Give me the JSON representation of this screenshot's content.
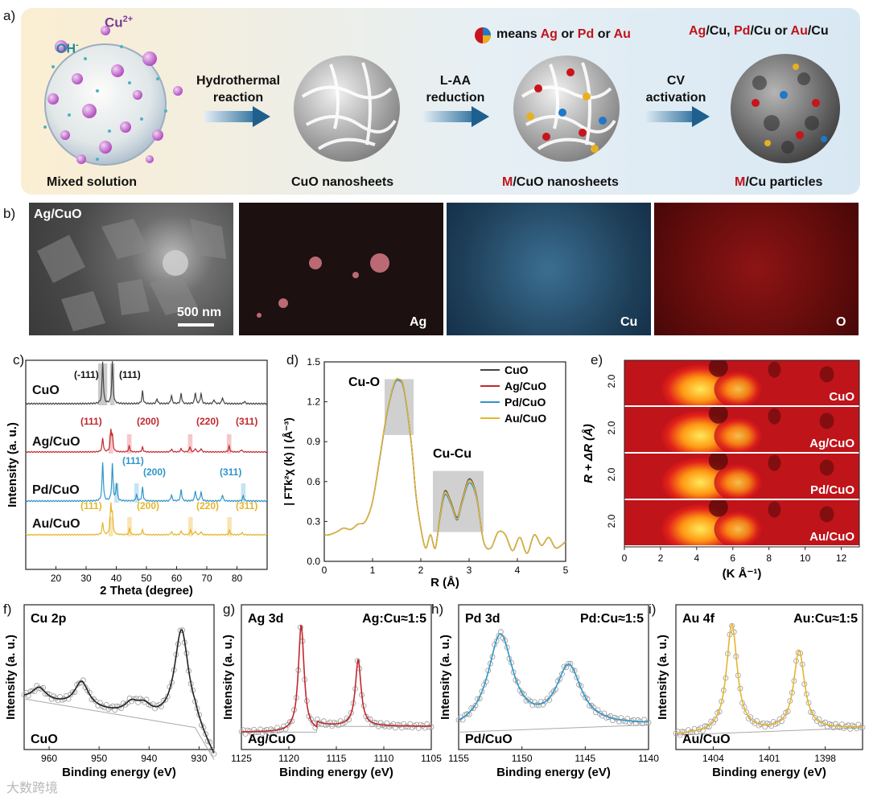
{
  "panels": {
    "a": "a)",
    "b": "b)",
    "c": "c)",
    "d": "d)",
    "e": "e)",
    "f": "f)",
    "g": "g)",
    "h": "h)",
    "i": "i)"
  },
  "scheme": {
    "cu_ion": "Cu",
    "cu_charge": "2+",
    "oh_ion": "OH",
    "oh_charge": "-",
    "step1_label_1": "Hydrothermal",
    "step1_label_2": "reaction",
    "step2_label_1": "L-AA",
    "step2_label_2": "reduction",
    "step3_label_1": "CV",
    "step3_label_2": "activation",
    "legend_prefix": "means",
    "legend_ag": "Ag",
    "legend_or1": "or",
    "legend_pd": "Pd",
    "legend_or2": "or",
    "legend_au": "Au",
    "product_ag": "Ag",
    "product_cu1": "/Cu,",
    "product_pd": "Pd",
    "product_cu2": "/Cu or",
    "product_au": "Au",
    "product_cu3": "/Cu",
    "caption_1": "Mixed solution",
    "caption_2": "CuO nanosheets",
    "caption_3_m": "M",
    "caption_3_rest": "/CuO nanosheets",
    "caption_4_m": "M",
    "caption_4_rest": "/Cu particles"
  },
  "microscopy": {
    "sample": "Ag/CuO",
    "scalebar": "500 nm",
    "map_ag": "Ag",
    "map_cu": "Cu",
    "map_o": "O"
  },
  "colors": {
    "cuo": "#444444",
    "ag": "#c0282d",
    "pd": "#2f95c8",
    "au": "#e6b52b",
    "gray_band": "#c8c8c8"
  },
  "chart_data": [
    {
      "id": "c",
      "type": "line",
      "title": "",
      "xlabel": "2 Theta (degree)",
      "ylabel": "Intensity (a. u.)",
      "xlim": [
        10,
        90
      ],
      "xticks": [
        "20",
        "30",
        "40",
        "50",
        "60",
        "70",
        "80"
      ],
      "series": [
        {
          "name": "CuO",
          "peaks": [
            [
              35.5,
              1.0
            ],
            [
              38.7,
              1.0
            ],
            [
              48.7,
              0.3
            ],
            [
              53.5,
              0.12
            ],
            [
              58.3,
              0.2
            ],
            [
              61.5,
              0.25
            ],
            [
              66.2,
              0.27
            ],
            [
              68.1,
              0.25
            ],
            [
              72.4,
              0.1
            ],
            [
              75.2,
              0.15
            ],
            [
              82.5,
              0.06
            ]
          ]
        },
        {
          "name": "Ag/CuO",
          "peaks": [
            [
              35.5,
              0.48
            ],
            [
              38.2,
              0.7
            ],
            [
              38.7,
              0.5
            ],
            [
              44.3,
              0.2
            ],
            [
              48.7,
              0.16
            ],
            [
              58.3,
              0.1
            ],
            [
              61.5,
              0.12
            ],
            [
              64.4,
              0.18
            ],
            [
              66.2,
              0.12
            ],
            [
              68.1,
              0.12
            ],
            [
              77.4,
              0.2
            ],
            [
              81.5,
              0.08
            ]
          ]
        },
        {
          "name": "Pd/CuO",
          "peaks": [
            [
              35.5,
              1.0
            ],
            [
              38.7,
              0.95
            ],
            [
              40.1,
              0.45
            ],
            [
              46.7,
              0.16
            ],
            [
              48.7,
              0.35
            ],
            [
              58.3,
              0.16
            ],
            [
              61.5,
              0.3
            ],
            [
              66.2,
              0.27
            ],
            [
              68.1,
              0.24
            ],
            [
              75.2,
              0.16
            ],
            [
              82.1,
              0.14
            ]
          ]
        },
        {
          "name": "Au/CuO",
          "peaks": [
            [
              35.5,
              0.38
            ],
            [
              38.2,
              0.9
            ],
            [
              38.7,
              0.55
            ],
            [
              44.4,
              0.2
            ],
            [
              48.7,
              0.15
            ],
            [
              58.3,
              0.1
            ],
            [
              61.5,
              0.12
            ],
            [
              64.6,
              0.16
            ],
            [
              66.2,
              0.12
            ],
            [
              68.1,
              0.1
            ],
            [
              77.5,
              0.14
            ],
            [
              81.7,
              0.07
            ]
          ]
        }
      ],
      "curve_labels": [
        "CuO",
        "Ag/CuO",
        "Pd/CuO",
        "Au/CuO"
      ],
      "annotations": {
        "cuo": [
          "(-111)",
          "(111)"
        ],
        "ag": [
          "(111)",
          "(200)",
          "(220)",
          "(311)"
        ],
        "pd": [
          "(111)",
          "(200)",
          "(311)"
        ],
        "au": [
          "(111)",
          "(200)",
          "(220)",
          "(311)"
        ]
      }
    },
    {
      "id": "d",
      "type": "line",
      "xlabel": "R (Å)",
      "ylabel": "| FTk²χ (k) | (Å⁻³)",
      "xlim": [
        0,
        5
      ],
      "ylim": [
        0,
        1.5
      ],
      "xticks": [
        "0",
        "1",
        "2",
        "3",
        "4",
        "5"
      ],
      "yticks": [
        "0.0",
        "0.3",
        "0.6",
        "0.9",
        "1.2",
        "1.5"
      ],
      "annotations": [
        "Cu-O",
        "Cu-Cu"
      ],
      "legend": [
        "CuO",
        "Ag/CuO",
        "Pd/CuO",
        "Au/CuO"
      ],
      "x": [
        0.0,
        0.1,
        0.25,
        0.4,
        0.55,
        0.7,
        0.85,
        1.0,
        1.15,
        1.3,
        1.45,
        1.55,
        1.65,
        1.8,
        1.9,
        2.0,
        2.1,
        2.2,
        2.3,
        2.4,
        2.5,
        2.62,
        2.75,
        2.85,
        3.0,
        3.15,
        3.3,
        3.45,
        3.6,
        3.75,
        3.9,
        4.05,
        4.2,
        4.35,
        4.5,
        4.65,
        4.8,
        5.0
      ],
      "series": [
        {
          "name": "CuO",
          "values": [
            0.2,
            0.2,
            0.22,
            0.25,
            0.24,
            0.28,
            0.3,
            0.45,
            0.78,
            1.12,
            1.34,
            1.37,
            1.3,
            0.9,
            0.5,
            0.25,
            0.1,
            0.2,
            0.1,
            0.35,
            0.53,
            0.45,
            0.33,
            0.45,
            0.62,
            0.5,
            0.15,
            0.1,
            0.22,
            0.2,
            0.08,
            0.18,
            0.06,
            0.2,
            0.12,
            0.18,
            0.1,
            0.15
          ]
        },
        {
          "name": "Ag/CuO",
          "values": [
            0.2,
            0.2,
            0.22,
            0.25,
            0.24,
            0.28,
            0.3,
            0.45,
            0.78,
            1.12,
            1.33,
            1.36,
            1.29,
            0.9,
            0.5,
            0.25,
            0.1,
            0.2,
            0.1,
            0.34,
            0.52,
            0.44,
            0.32,
            0.44,
            0.61,
            0.49,
            0.15,
            0.1,
            0.22,
            0.2,
            0.08,
            0.18,
            0.06,
            0.2,
            0.12,
            0.18,
            0.1,
            0.15
          ]
        },
        {
          "name": "Pd/CuO",
          "values": [
            0.2,
            0.2,
            0.22,
            0.25,
            0.24,
            0.28,
            0.3,
            0.45,
            0.77,
            1.11,
            1.33,
            1.36,
            1.29,
            0.89,
            0.49,
            0.25,
            0.1,
            0.2,
            0.1,
            0.33,
            0.5,
            0.43,
            0.31,
            0.43,
            0.59,
            0.48,
            0.15,
            0.1,
            0.22,
            0.2,
            0.08,
            0.18,
            0.06,
            0.2,
            0.12,
            0.18,
            0.1,
            0.15
          ]
        },
        {
          "name": "Au/CuO",
          "values": [
            0.2,
            0.2,
            0.22,
            0.25,
            0.24,
            0.28,
            0.3,
            0.45,
            0.78,
            1.12,
            1.34,
            1.37,
            1.3,
            0.9,
            0.5,
            0.25,
            0.1,
            0.2,
            0.1,
            0.34,
            0.52,
            0.44,
            0.32,
            0.44,
            0.61,
            0.49,
            0.15,
            0.1,
            0.22,
            0.2,
            0.08,
            0.18,
            0.06,
            0.2,
            0.12,
            0.18,
            0.1,
            0.15
          ]
        }
      ]
    },
    {
      "id": "e",
      "type": "heatmap",
      "xlabel": "(K Å⁻¹)",
      "ylabel": "R + ΔR (Å)",
      "xlim": [
        0,
        13
      ],
      "xticks": [
        "0",
        "2",
        "4",
        "6",
        "8",
        "10",
        "12"
      ],
      "row_tick": "2.0",
      "rows": [
        "CuO",
        "Ag/CuO",
        "Pd/CuO",
        "Au/CuO"
      ]
    },
    {
      "id": "f",
      "type": "line",
      "title": "Cu 2p",
      "sample": "CuO",
      "xlabel": "Binding energy (eV)",
      "ylabel": "Intensity (a. u.)",
      "xlim": [
        965,
        927
      ],
      "xticks": [
        "960",
        "950",
        "940",
        "930"
      ],
      "peaks": [
        [
          962.0,
          0.42
        ],
        [
          953.5,
          0.46
        ],
        [
          943.5,
          0.3
        ],
        [
          941.0,
          0.28
        ],
        [
          933.5,
          0.82
        ]
      ]
    },
    {
      "id": "g",
      "type": "line",
      "title": "Ag 3d",
      "ratio": "Ag:Cu≈1:5",
      "sample": "Ag/CuO",
      "xlabel": "Binding energy (eV)",
      "ylabel": "Intensity (a. u.)",
      "xlim": [
        1125,
        1105
      ],
      "xticks": [
        "1125",
        "1120",
        "1115",
        "1110",
        "1105"
      ],
      "peaks": [
        [
          1118.7,
          0.86
        ],
        [
          1112.7,
          0.62
        ]
      ]
    },
    {
      "id": "h",
      "type": "line",
      "title": "Pd 3d",
      "ratio": "Pd:Cu≈1:5",
      "sample": "Pd/CuO",
      "xlabel": "Binding energy (eV)",
      "ylabel": "Intensity (a. u.)",
      "xlim": [
        1155,
        1140
      ],
      "xticks": [
        "1155",
        "1150",
        "1145",
        "1140"
      ],
      "peaks": [
        [
          1151.7,
          0.78
        ],
        [
          1146.3,
          0.56
        ]
      ]
    },
    {
      "id": "i",
      "type": "line",
      "title": "Au 4f",
      "ratio": "Au:Cu≈1:5",
      "sample": "Au/CuO",
      "xlabel": "Binding energy (eV)",
      "ylabel": "Intensity (a. u.)",
      "xlim": [
        1406,
        1396
      ],
      "xticks": [
        "1404",
        "1401",
        "1398"
      ],
      "peaks": [
        [
          1403.0,
          0.86
        ],
        [
          1399.4,
          0.68
        ]
      ]
    }
  ],
  "watermark": "大数跨境"
}
